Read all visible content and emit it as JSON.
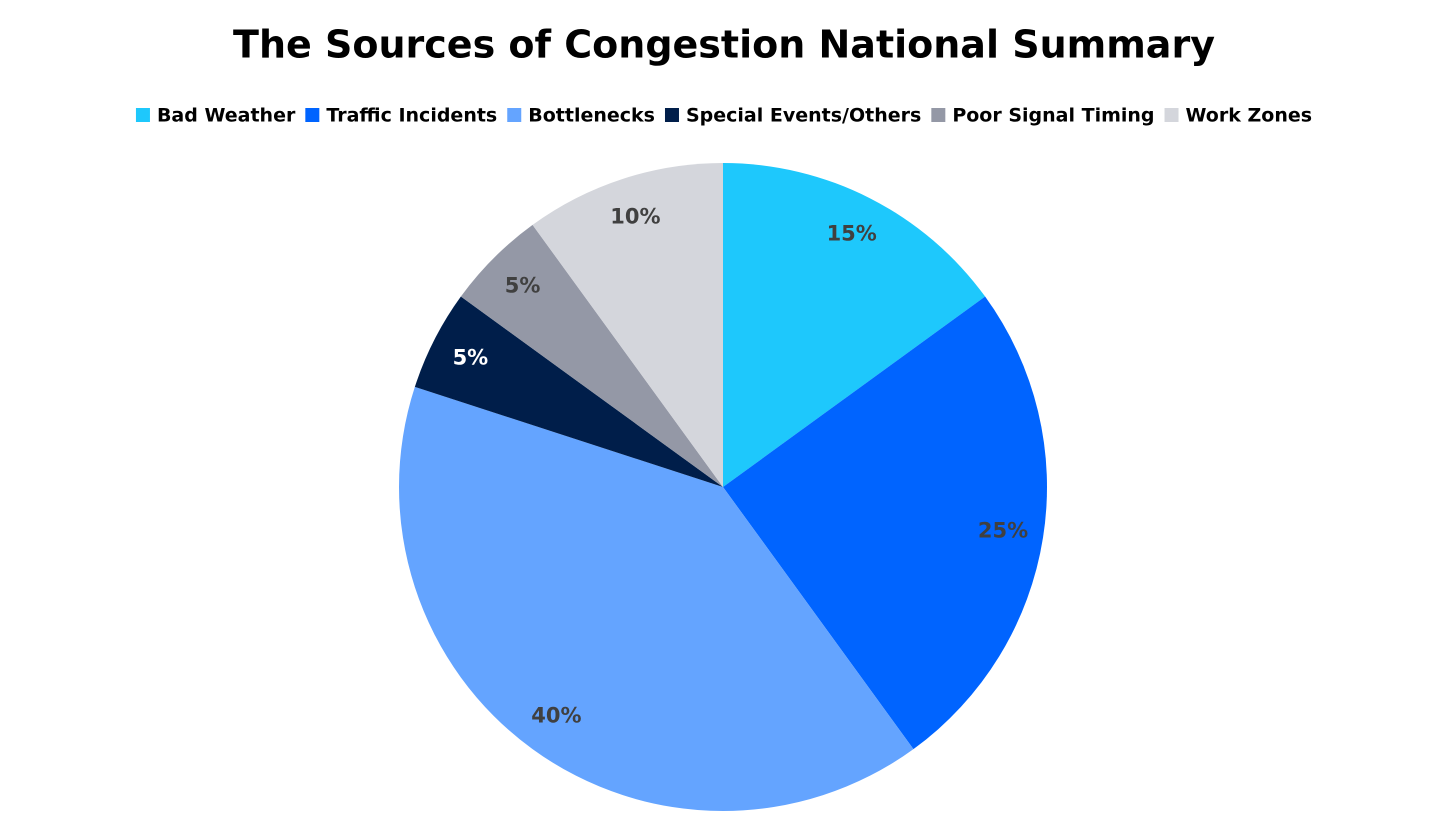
{
  "chart_data": {
    "type": "pie",
    "title": "The Sources of Congestion National Summary",
    "categories": [
      "Bad Weather",
      "Traffic Incidents",
      "Bottlenecks",
      "Special Events/Others",
      "Poor Signal Timing",
      "Work Zones"
    ],
    "values": [
      15,
      25,
      40,
      5,
      5,
      10
    ],
    "value_labels": [
      "15%",
      "25%",
      "40%",
      "5%",
      "5%",
      "10%"
    ],
    "colors": [
      "#1ec8fc",
      "#0064ff",
      "#64a4ff",
      "#001e4a",
      "#9498a6",
      "#d4d6dc"
    ],
    "legend": "top"
  }
}
